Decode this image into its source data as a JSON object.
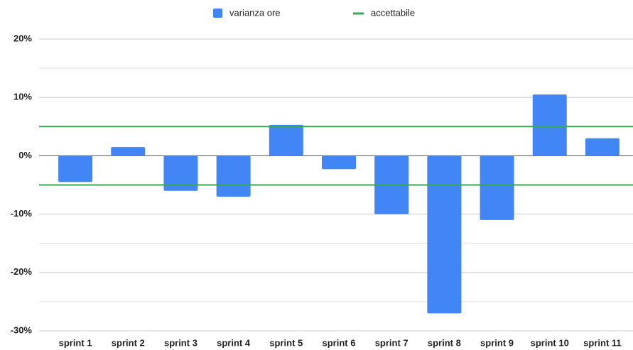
{
  "chart_data": {
    "type": "bar",
    "categories": [
      "sprint 1",
      "sprint 2",
      "sprint 3",
      "sprint 4",
      "sprint 5",
      "sprint 6",
      "sprint 7",
      "sprint 8",
      "sprint 9",
      "sprint 10",
      "sprint 11"
    ],
    "series": [
      {
        "name": "varianza ore",
        "color": "#4285f4",
        "values": [
          -4.5,
          1.5,
          -6,
          -7,
          5.3,
          -2.3,
          -10,
          -27,
          -11,
          10.5,
          3
        ]
      }
    ],
    "reference_lines": {
      "name": "accettabile",
      "color": "#34a853",
      "values": [
        5,
        -5
      ]
    },
    "ylim": [
      -30,
      20
    ],
    "yticks": [
      {
        "value": 20,
        "label": "20%"
      },
      {
        "value": 10,
        "label": "10%"
      },
      {
        "value": 0,
        "label": "0%"
      },
      {
        "value": -10,
        "label": "-10%"
      },
      {
        "value": -20,
        "label": "-20%"
      },
      {
        "value": -30,
        "label": "-30%"
      }
    ],
    "minor_grid": [
      15,
      5,
      -5,
      -15,
      -25
    ],
    "grid": true,
    "legend": "top"
  }
}
